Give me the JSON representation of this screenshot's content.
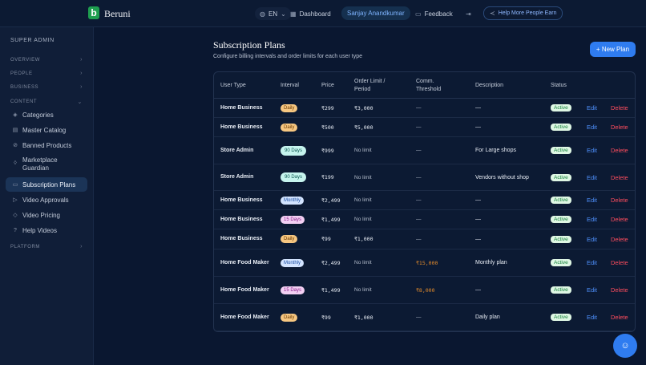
{
  "app": {
    "name": "Beruni",
    "logo_letter": "b"
  },
  "topbar": {
    "lang": "EN",
    "dashboard": "Dashboard",
    "user": "Sanjay Anandkumar",
    "feedback": "Feedback",
    "help": "Help More People Earn"
  },
  "sidebar": {
    "role": "SUPER ADMIN",
    "sections": {
      "overview": "OVERVIEW",
      "people": "PEOPLE",
      "business": "BUSINESS",
      "content": "CONTENT",
      "platform": "PLATFORM"
    },
    "items": [
      {
        "label": "Categories",
        "icon": "layers-icon"
      },
      {
        "label": "Master Catalog",
        "icon": "document-icon"
      },
      {
        "label": "Banned Products",
        "icon": "ban-icon"
      },
      {
        "label": "Marketplace Guardian",
        "icon": "shield-icon"
      },
      {
        "label": "Subscription Plans",
        "icon": "card-icon"
      },
      {
        "label": "Video Approvals",
        "icon": "video-icon"
      },
      {
        "label": "Video Pricing",
        "icon": "tag-icon"
      },
      {
        "label": "Help Videos",
        "icon": "help-icon"
      }
    ]
  },
  "main": {
    "title": "Subscription Plans",
    "subtitle": "Configure billing intervals and order limits for each user type",
    "new_button": "+ New Plan",
    "columns": {
      "user_type": "User Type",
      "interval": "Interval",
      "price": "Price",
      "order_limit": "Order Limit / Period",
      "comm": "Comm. Threshold",
      "description": "Description",
      "status": "Status"
    },
    "action_edit": "Edit",
    "action_delete": "Delete",
    "rows": [
      {
        "type": "Home Business",
        "interval": "Daily",
        "price": "₹299",
        "limit": "₹3,000",
        "comm": "—",
        "desc": "—",
        "status": "Active"
      },
      {
        "type": "Home Business",
        "interval": "Daily",
        "price": "₹500",
        "limit": "₹5,000",
        "comm": "—",
        "desc": "—",
        "status": "Active"
      },
      {
        "type": "Store Admin",
        "interval": "90 Days",
        "price": "₹999",
        "limit": "No limit",
        "comm": "—",
        "desc": "For Large shops",
        "status": "Active"
      },
      {
        "type": "Store Admin",
        "interval": "90 Days",
        "price": "₹199",
        "limit": "No limit",
        "comm": "—",
        "desc": "Vendors without shop",
        "status": "Active"
      },
      {
        "type": "Home Business",
        "interval": "Monthly",
        "price": "₹2,499",
        "limit": "No limit",
        "comm": "—",
        "desc": "—",
        "status": "Active"
      },
      {
        "type": "Home Business",
        "interval": "15 Days",
        "price": "₹1,499",
        "limit": "No limit",
        "comm": "—",
        "desc": "—",
        "status": "Active"
      },
      {
        "type": "Home Business",
        "interval": "Daily",
        "price": "₹99",
        "limit": "₹1,000",
        "comm": "—",
        "desc": "—",
        "status": "Active"
      },
      {
        "type": "Home Food Maker",
        "interval": "Monthly",
        "price": "₹2,499",
        "limit": "No limit",
        "comm": "₹15,000",
        "desc": "Monthly plan",
        "status": "Active"
      },
      {
        "type": "Home Food Maker",
        "interval": "15 Days",
        "price": "₹1,499",
        "limit": "No limit",
        "comm": "₹8,000",
        "desc": "—",
        "status": "Active"
      },
      {
        "type": "Home Food Maker",
        "interval": "Daily",
        "price": "₹99",
        "limit": "₹1,000",
        "comm": "—",
        "desc": "Daily plan",
        "status": "Active"
      }
    ]
  },
  "colors": {
    "accent": "#2f7cf0",
    "danger": "#ff4d5e",
    "bg": "#0a1730",
    "active": "#14803a"
  }
}
